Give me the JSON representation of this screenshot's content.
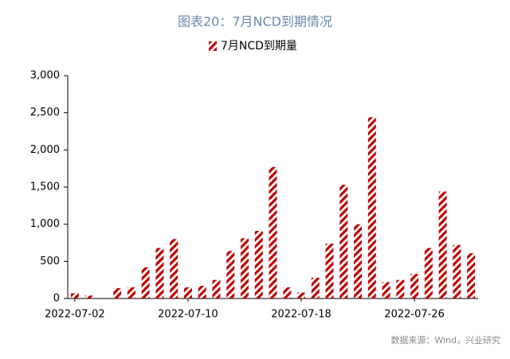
{
  "chart_data": {
    "type": "bar",
    "title": "图表20：7月NCD到期情况",
    "series": [
      {
        "name": "7月NCD到期量",
        "color": "#c00000",
        "values": [
          70,
          40,
          0,
          140,
          150,
          420,
          680,
          800,
          150,
          170,
          250,
          640,
          810,
          910,
          1770,
          150,
          80,
          280,
          740,
          1530,
          1000,
          2440,
          220,
          250,
          330,
          680,
          1440,
          720,
          610
        ]
      }
    ],
    "categories": [
      "2022-07-02",
      null,
      null,
      null,
      null,
      null,
      null,
      null,
      "2022-07-10",
      null,
      null,
      null,
      null,
      null,
      null,
      null,
      "2022-07-18",
      null,
      null,
      null,
      null,
      null,
      null,
      null,
      "2022-07-26",
      null,
      null,
      null,
      null
    ],
    "ylim": [
      0,
      3000
    ],
    "yticks": [
      0,
      500,
      {
        "value": 1000,
        "label": "1,000"
      },
      {
        "value": 1500,
        "label": "1,500"
      },
      {
        "value": 2000,
        "label": "2,000"
      },
      {
        "value": 2500,
        "label": "2,500"
      },
      {
        "value": 3000,
        "label": "3,000"
      }
    ],
    "grid": false,
    "legend": "top",
    "source": "数据来源：Wind，兴业研究"
  }
}
